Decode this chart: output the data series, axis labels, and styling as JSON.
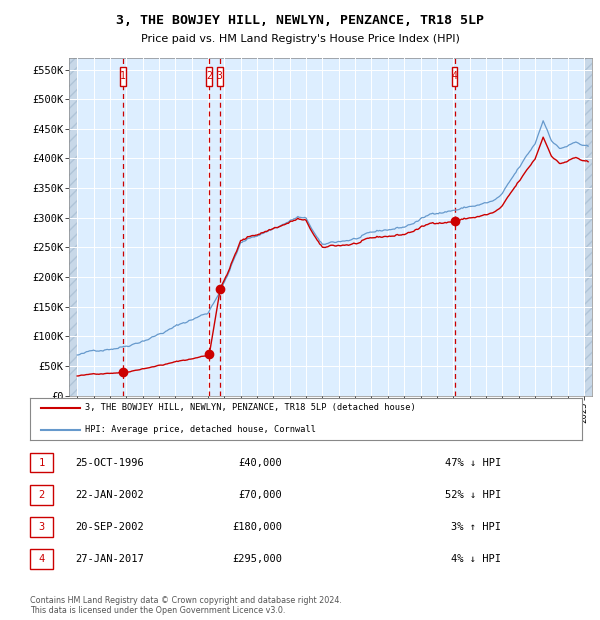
{
  "title": "3, THE BOWJEY HILL, NEWLYN, PENZANCE, TR18 5LP",
  "subtitle": "Price paid vs. HM Land Registry's House Price Index (HPI)",
  "legend_line1": "3, THE BOWJEY HILL, NEWLYN, PENZANCE, TR18 5LP (detached house)",
  "legend_line2": "HPI: Average price, detached house, Cornwall",
  "footer": "Contains HM Land Registry data © Crown copyright and database right 2024.\nThis data is licensed under the Open Government Licence v3.0.",
  "sale_dates": [
    1996.82,
    2002.06,
    2002.72,
    2017.08
  ],
  "sale_prices": [
    40000,
    70000,
    180000,
    295000
  ],
  "sale_labels": [
    "1",
    "2",
    "3",
    "4"
  ],
  "table_rows": [
    [
      "1",
      "25-OCT-1996",
      "£40,000",
      "47% ↓ HPI"
    ],
    [
      "2",
      "22-JAN-2002",
      "£70,000",
      "52% ↓ HPI"
    ],
    [
      "3",
      "20-SEP-2002",
      "£180,000",
      "3% ↑ HPI"
    ],
    [
      "4",
      "27-JAN-2017",
      "£295,000",
      "4% ↓ HPI"
    ]
  ],
  "hpi_color": "#6699cc",
  "price_color": "#cc0000",
  "background_color": "#ddeeff",
  "plot_bg_color": "#ddeeff",
  "ylim": [
    0,
    570000
  ],
  "yticks": [
    0,
    50000,
    100000,
    150000,
    200000,
    250000,
    300000,
    350000,
    400000,
    450000,
    500000,
    550000
  ],
  "xlim_start": 1993.5,
  "xlim_end": 2025.5,
  "hpi_anchor_years": [
    1994.0,
    1994.5,
    1997.0,
    2002.0,
    2003.0,
    2004.0,
    2007.5,
    2008.0,
    2009.0,
    2009.5,
    2013.0,
    2014.0,
    2016.0,
    2019.5,
    2020.0,
    2022.0,
    2022.5,
    2023.0,
    2023.5,
    2024.5,
    2025.25
  ],
  "hpi_anchor_vals": [
    68000,
    70000,
    88000,
    147000,
    200000,
    265000,
    310000,
    305000,
    258000,
    262000,
    280000,
    285000,
    310000,
    330000,
    340000,
    420000,
    460000,
    430000,
    415000,
    425000,
    415000
  ]
}
